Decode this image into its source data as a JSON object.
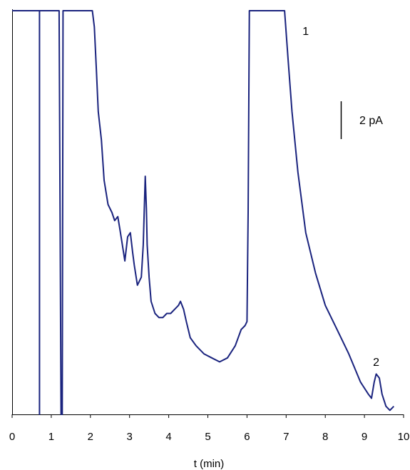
{
  "chart_data": {
    "type": "line",
    "title": "",
    "xlabel": "t (min)",
    "ylabel": "",
    "xlim": [
      0,
      10
    ],
    "ylim": [
      0,
      100
    ],
    "grid": false,
    "legend": "none",
    "line_color": "#1a237e",
    "x_ticks": [
      "0",
      "1",
      "2",
      "3",
      "4",
      "5",
      "6",
      "7",
      "8",
      "9",
      "10"
    ],
    "scale_bar": {
      "label": "2 pA",
      "value": 2
    },
    "peak_labels": [
      {
        "text": "1",
        "x": 7.5,
        "y": 94
      },
      {
        "text": "2",
        "x": 9.3,
        "y": 12
      }
    ],
    "series": [
      {
        "x": [
          0.0,
          0.7,
          0.7,
          0.7,
          0.71,
          0.71,
          1.2,
          1.25,
          1.28,
          1.3,
          1.35,
          1.38,
          2.05,
          2.1,
          2.15,
          2.2,
          2.28,
          2.35,
          2.45,
          2.55,
          2.62,
          2.7,
          2.75,
          2.8,
          2.88,
          2.95,
          3.02,
          3.08,
          3.12,
          3.2,
          3.3,
          3.35,
          3.4,
          3.43,
          3.45,
          3.5,
          3.55,
          3.65,
          3.75,
          3.85,
          3.95,
          4.05,
          4.15,
          4.25,
          4.3,
          4.38,
          4.45,
          4.55,
          4.7,
          4.9,
          5.1,
          5.3,
          5.5,
          5.7,
          5.85,
          5.95,
          6.0,
          6.03,
          6.06,
          6.1,
          6.5,
          6.96,
          7.05,
          7.15,
          7.3,
          7.5,
          7.75,
          8.0,
          8.3,
          8.6,
          8.9,
          9.1,
          9.18,
          9.25,
          9.3,
          9.38,
          9.45,
          9.55,
          9.65,
          9.75
        ],
        "y": [
          100,
          100,
          0,
          100,
          100,
          100,
          100,
          0,
          0,
          100,
          100,
          100,
          100,
          96,
          86,
          75,
          68,
          58,
          52,
          50,
          48,
          49,
          46,
          43,
          38,
          44,
          45,
          40,
          37,
          32,
          34,
          42,
          59,
          51,
          42,
          34,
          28,
          25,
          24,
          24,
          25,
          25,
          26,
          27,
          28,
          26,
          23,
          19,
          17,
          15,
          14,
          13,
          14,
          17,
          21,
          22,
          23,
          50,
          100,
          100,
          100,
          100,
          88,
          75,
          60,
          45,
          35,
          27,
          21,
          15,
          8,
          5,
          4,
          8,
          10,
          9,
          5,
          2,
          1,
          2
        ]
      }
    ]
  }
}
